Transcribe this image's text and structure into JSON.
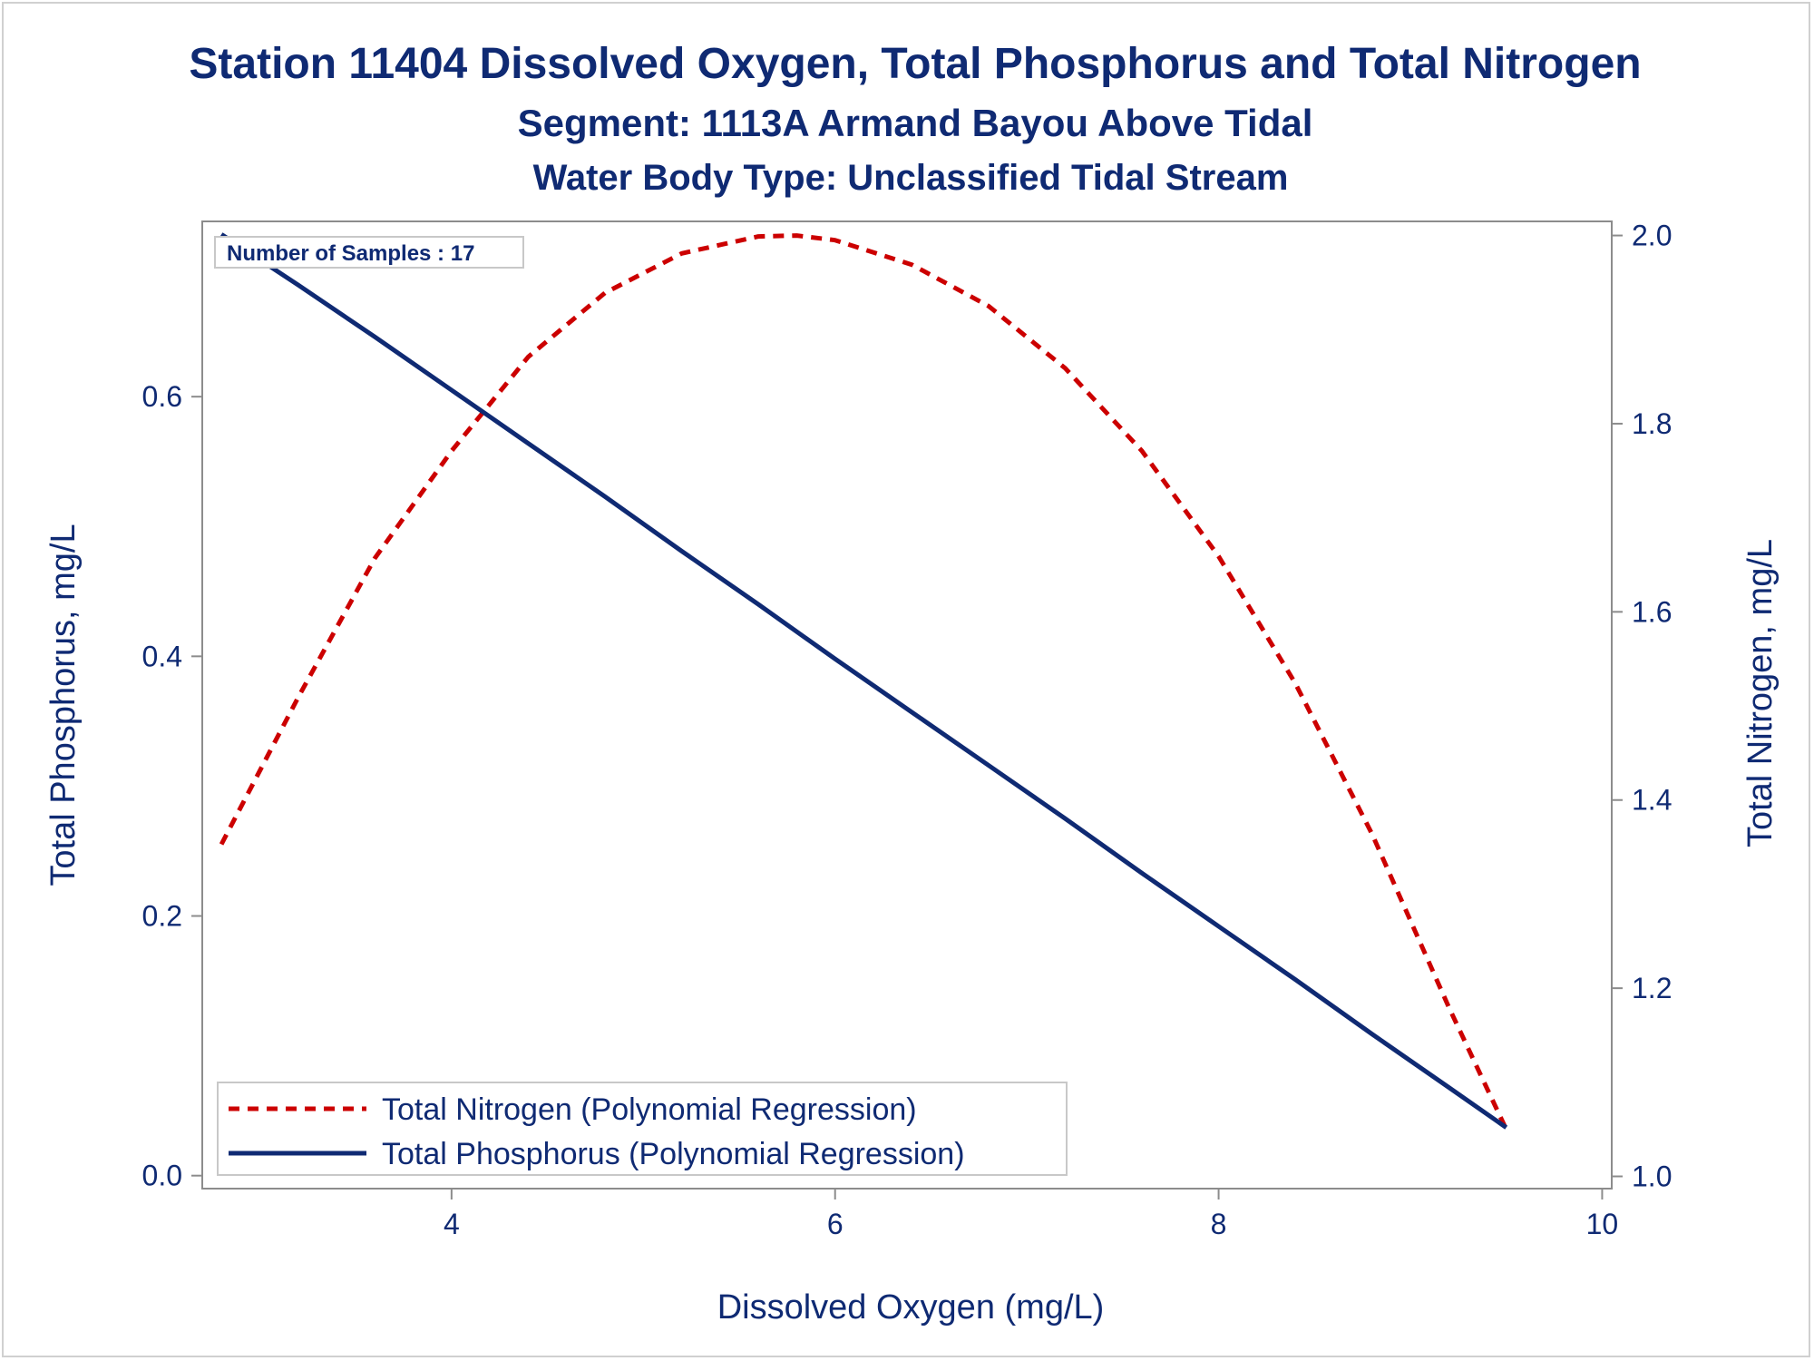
{
  "chart_data": {
    "type": "line",
    "title": "Station 11404  Dissolved Oxygen, Total Phosphorus and Total Nitrogen",
    "subtitle": "Segment: 1113A  Armand Bayou Above Tidal",
    "subtitle2": "Water Body Type: Unclassified Tidal Stream",
    "xlabel": "Dissolved Oxygen (mg/L)",
    "ylabel": "Total Phosphorus, mg/L",
    "y2label": "Total Nitrogen, mg/L",
    "xlim": [
      2.7,
      10.05
    ],
    "ylim": [
      -0.01,
      0.735
    ],
    "y2lim": [
      0.987,
      2.015
    ],
    "x_ticks": [
      4,
      6,
      8,
      10
    ],
    "x_tick_labels": [
      "4",
      "6",
      "8",
      "10"
    ],
    "y_ticks": [
      0.0,
      0.2,
      0.4,
      0.6
    ],
    "y_tick_labels": [
      "0.0",
      "0.2",
      "0.4",
      "0.6"
    ],
    "y2_ticks": [
      1.0,
      1.2,
      1.4,
      1.6,
      1.8,
      2.0
    ],
    "y2_tick_labels": [
      "1.0",
      "1.2",
      "1.4",
      "1.6",
      "1.8",
      "2.0"
    ],
    "grid": false,
    "legend_position": "bottom-left",
    "annotation": "Number of Samples : 17",
    "series": [
      {
        "name": "Total Nitrogen (Polynomial Regression)",
        "axis": "right",
        "style": "dashed",
        "color": "#cc0000",
        "x": [
          2.8,
          3.2,
          3.6,
          4.0,
          4.4,
          4.8,
          5.2,
          5.6,
          5.8,
          6.0,
          6.4,
          6.8,
          7.2,
          7.6,
          8.0,
          8.4,
          8.8,
          9.2,
          9.5
        ],
        "y": [
          1.353,
          1.509,
          1.657,
          1.771,
          1.871,
          1.939,
          1.981,
          1.999,
          2.0,
          1.995,
          1.969,
          1.925,
          1.859,
          1.771,
          1.659,
          1.524,
          1.364,
          1.18,
          1.05
        ]
      },
      {
        "name": "Total Phosphorus (Polynomial Regression)",
        "axis": "left",
        "style": "solid",
        "color": "#0f2a73",
        "x": [
          2.8,
          3.2,
          3.6,
          4.0,
          4.4,
          4.8,
          5.2,
          5.6,
          6.0,
          6.4,
          6.8,
          7.2,
          7.6,
          8.0,
          8.4,
          8.8,
          9.2,
          9.5
        ],
        "y": [
          0.725,
          0.686,
          0.646,
          0.605,
          0.564,
          0.523,
          0.481,
          0.44,
          0.398,
          0.357,
          0.316,
          0.275,
          0.233,
          0.192,
          0.151,
          0.109,
          0.068,
          0.037
        ]
      }
    ]
  }
}
